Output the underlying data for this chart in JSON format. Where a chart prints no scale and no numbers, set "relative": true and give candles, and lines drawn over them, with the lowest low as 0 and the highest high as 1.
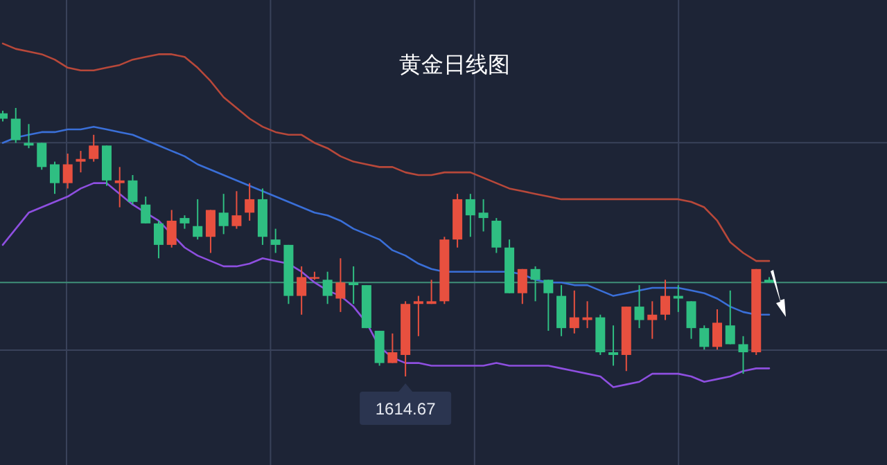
{
  "chart_data": {
    "type": "candlestick",
    "title": "黄金日线图",
    "relative": true,
    "grid": true,
    "categories": [
      null,
      null,
      null,
      null,
      null,
      null,
      null,
      null,
      null,
      null,
      null,
      null,
      null,
      null,
      null,
      null,
      null,
      null,
      null,
      null,
      null,
      null,
      null,
      null,
      null,
      null,
      null,
      null,
      null,
      null,
      null,
      null,
      null,
      null,
      null,
      null,
      null,
      null,
      null,
      null,
      null,
      null,
      null,
      null,
      null,
      null,
      null,
      null,
      null,
      null,
      null,
      null,
      null,
      null,
      null,
      null,
      null,
      null,
      null,
      null
    ],
    "ohlc": [
      [
        0.98,
        0.99,
        0.95,
        0.96
      ],
      [
        0.96,
        1.0,
        0.87,
        0.88
      ],
      [
        0.87,
        0.94,
        0.85,
        0.86
      ],
      [
        0.87,
        0.87,
        0.77,
        0.78
      ],
      [
        0.79,
        0.8,
        0.68,
        0.72
      ],
      [
        0.72,
        0.83,
        0.7,
        0.79
      ],
      [
        0.8,
        0.84,
        0.76,
        0.81
      ],
      [
        0.81,
        0.9,
        0.8,
        0.86
      ],
      [
        0.86,
        0.86,
        0.71,
        0.73
      ],
      [
        0.72,
        0.78,
        0.63,
        0.73
      ],
      [
        0.73,
        0.75,
        0.64,
        0.65
      ],
      [
        0.64,
        0.67,
        0.57,
        0.57
      ],
      [
        0.57,
        0.58,
        0.44,
        0.49
      ],
      [
        0.49,
        0.62,
        0.48,
        0.58
      ],
      [
        0.59,
        0.6,
        0.55,
        0.57
      ],
      [
        0.56,
        0.66,
        0.51,
        0.52
      ],
      [
        0.52,
        0.62,
        0.46,
        0.62
      ],
      [
        0.61,
        0.68,
        0.53,
        0.56
      ],
      [
        0.56,
        0.69,
        0.55,
        0.6
      ],
      [
        0.61,
        0.72,
        0.58,
        0.66
      ],
      [
        0.66,
        0.7,
        0.49,
        0.52
      ],
      [
        0.51,
        0.55,
        0.46,
        0.49
      ],
      [
        0.49,
        0.49,
        0.27,
        0.3
      ],
      [
        0.3,
        0.41,
        0.23,
        0.37
      ],
      [
        0.37,
        0.39,
        0.36,
        0.37
      ],
      [
        0.36,
        0.39,
        0.27,
        0.3
      ],
      [
        0.29,
        0.44,
        0.24,
        0.35
      ],
      [
        0.35,
        0.41,
        0.27,
        0.34
      ],
      [
        0.34,
        0.34,
        0.18,
        0.18
      ],
      [
        0.17,
        0.17,
        0.04,
        0.05
      ],
      [
        0.05,
        0.16,
        0.05,
        0.09
      ],
      [
        0.08,
        0.28,
        0.0,
        0.27
      ],
      [
        0.27,
        0.3,
        0.15,
        0.28
      ],
      [
        0.27,
        0.36,
        0.27,
        0.28
      ],
      [
        0.28,
        0.52,
        0.27,
        0.51
      ],
      [
        0.51,
        0.68,
        0.48,
        0.66
      ],
      [
        0.66,
        0.68,
        0.52,
        0.6
      ],
      [
        0.61,
        0.66,
        0.54,
        0.59
      ],
      [
        0.58,
        0.59,
        0.46,
        0.48
      ],
      [
        0.48,
        0.51,
        0.31,
        0.31
      ],
      [
        0.31,
        0.4,
        0.27,
        0.4
      ],
      [
        0.4,
        0.41,
        0.28,
        0.36
      ],
      [
        0.36,
        0.36,
        0.17,
        0.31
      ],
      [
        0.3,
        0.34,
        0.15,
        0.18
      ],
      [
        0.18,
        0.32,
        0.16,
        0.22
      ],
      [
        0.21,
        0.28,
        0.18,
        0.22
      ],
      [
        0.22,
        0.23,
        0.08,
        0.09
      ],
      [
        0.09,
        0.19,
        0.04,
        0.08
      ],
      [
        0.08,
        0.26,
        0.02,
        0.26
      ],
      [
        0.26,
        0.34,
        0.18,
        0.21
      ],
      [
        0.21,
        0.28,
        0.14,
        0.23
      ],
      [
        0.23,
        0.36,
        0.21,
        0.3
      ],
      [
        0.3,
        0.34,
        0.24,
        0.29
      ],
      [
        0.28,
        0.28,
        0.14,
        0.18
      ],
      [
        0.18,
        0.19,
        0.1,
        0.11
      ],
      [
        0.11,
        0.25,
        0.1,
        0.2
      ],
      [
        0.19,
        0.32,
        0.12,
        0.12
      ],
      [
        0.12,
        0.15,
        0.01,
        0.09
      ],
      [
        0.09,
        0.4,
        0.08,
        0.4
      ],
      [
        0.36,
        0.37,
        0.35,
        0.35
      ]
    ],
    "colors": [
      "#2fbf82",
      "#2fbf82",
      "#2fbf82",
      "#2fbf82",
      "#2fbf82",
      "#e8503f",
      "#e8503f",
      "#e8503f",
      "#2fbf82",
      "#e8503f",
      "#2fbf82",
      "#2fbf82",
      "#2fbf82",
      "#e8503f",
      "#2fbf82",
      "#2fbf82",
      "#e8503f",
      "#2fbf82",
      "#e8503f",
      "#e8503f",
      "#2fbf82",
      "#2fbf82",
      "#2fbf82",
      "#e8503f",
      "#e8503f",
      "#2fbf82",
      "#e8503f",
      "#2fbf82",
      "#2fbf82",
      "#2fbf82",
      "#e8503f",
      "#e8503f",
      "#e8503f",
      "#e8503f",
      "#e8503f",
      "#e8503f",
      "#2fbf82",
      "#2fbf82",
      "#2fbf82",
      "#2fbf82",
      "#e8503f",
      "#2fbf82",
      "#2fbf82",
      "#2fbf82",
      "#e8503f",
      "#e8503f",
      "#2fbf82",
      "#2fbf82",
      "#e8503f",
      "#2fbf82",
      "#e8503f",
      "#e8503f",
      "#2fbf82",
      "#2fbf82",
      "#2fbf82",
      "#e8503f",
      "#2fbf82",
      "#2fbf82",
      "#e8503f",
      "#2fbf82"
    ],
    "series": [
      {
        "type": "line",
        "color": "#b8483a",
        "values": [
          1.24,
          1.22,
          1.21,
          1.2,
          1.18,
          1.15,
          1.14,
          1.14,
          1.15,
          1.16,
          1.18,
          1.19,
          1.2,
          1.2,
          1.19,
          1.15,
          1.1,
          1.04,
          1.0,
          0.96,
          0.93,
          0.91,
          0.9,
          0.9,
          0.87,
          0.85,
          0.82,
          0.8,
          0.79,
          0.78,
          0.78,
          0.76,
          0.75,
          0.75,
          0.76,
          0.76,
          0.76,
          0.74,
          0.72,
          0.7,
          0.69,
          0.68,
          0.67,
          0.66,
          0.66,
          0.66,
          0.66,
          0.66,
          0.66,
          0.66,
          0.66,
          0.66,
          0.66,
          0.65,
          0.63,
          0.58,
          0.5,
          0.46,
          0.43,
          0.43
        ]
      },
      {
        "type": "line",
        "color": "#3a6fd8",
        "values": [
          0.87,
          0.89,
          0.9,
          0.91,
          0.91,
          0.92,
          0.92,
          0.93,
          0.92,
          0.91,
          0.9,
          0.88,
          0.86,
          0.84,
          0.82,
          0.79,
          0.77,
          0.75,
          0.73,
          0.71,
          0.69,
          0.67,
          0.65,
          0.63,
          0.61,
          0.6,
          0.58,
          0.55,
          0.53,
          0.51,
          0.47,
          0.45,
          0.42,
          0.4,
          0.39,
          0.39,
          0.39,
          0.39,
          0.39,
          0.39,
          0.38,
          0.36,
          0.35,
          0.35,
          0.34,
          0.34,
          0.32,
          0.3,
          0.31,
          0.32,
          0.33,
          0.33,
          0.33,
          0.32,
          0.31,
          0.29,
          0.26,
          0.24,
          0.23,
          0.23
        ]
      },
      {
        "type": "line",
        "color": "#8e4fe0",
        "values": [
          0.49,
          0.55,
          0.61,
          0.63,
          0.65,
          0.67,
          0.7,
          0.72,
          0.72,
          0.68,
          0.64,
          0.61,
          0.58,
          0.53,
          0.48,
          0.45,
          0.43,
          0.41,
          0.41,
          0.42,
          0.44,
          0.43,
          0.42,
          0.39,
          0.35,
          0.32,
          0.3,
          0.26,
          0.2,
          0.11,
          0.07,
          0.05,
          0.05,
          0.04,
          0.04,
          0.04,
          0.04,
          0.04,
          0.05,
          0.04,
          0.04,
          0.04,
          0.04,
          0.03,
          0.02,
          0.01,
          0.0,
          -0.04,
          -0.03,
          -0.02,
          0.01,
          0.01,
          0.01,
          0.0,
          -0.02,
          -0.01,
          0.0,
          0.02,
          0.03,
          0.03
        ]
      }
    ],
    "ref_lines": [
      {
        "axis": "y",
        "value": 0.35,
        "color": "#3f8f78"
      }
    ],
    "annotations": [
      {
        "text": "1614.67",
        "y": 0
      }
    ]
  }
}
